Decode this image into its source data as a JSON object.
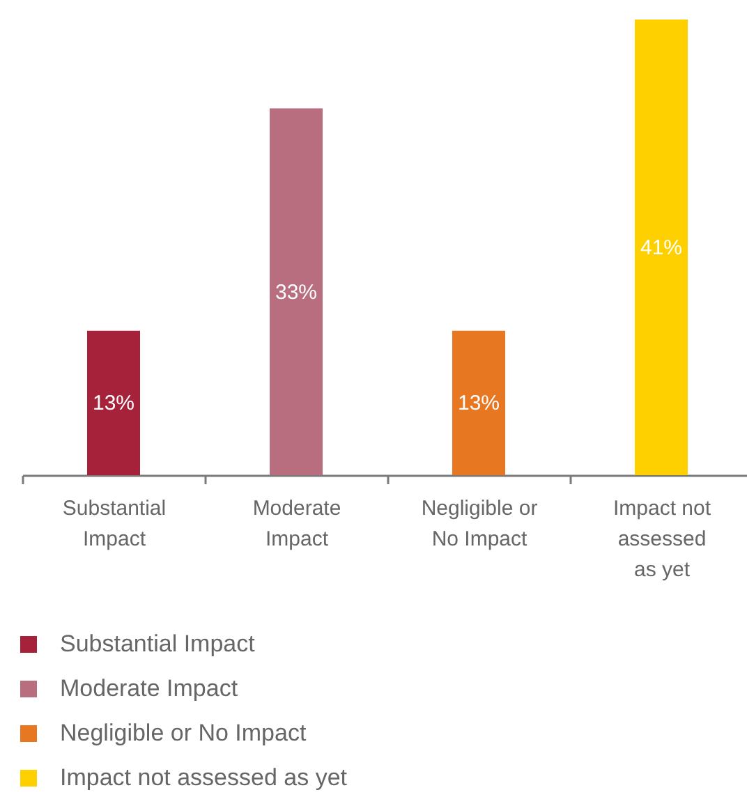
{
  "chart_data": {
    "type": "bar",
    "stacked": true,
    "categories": [
      "Substantial Impact",
      "Moderate Impact",
      "Negligible or No Impact",
      "Impact not assessed as yet"
    ],
    "series": [
      {
        "name": "Substantial Impact",
        "color": "#a6213a",
        "values": [
          13,
          null,
          null,
          null
        ],
        "value_labels": [
          "13%",
          null,
          null,
          null
        ]
      },
      {
        "name": "Moderate Impact",
        "color": "#b86e7e",
        "values": [
          null,
          33,
          null,
          null
        ],
        "value_labels": [
          null,
          "33%",
          null,
          null
        ]
      },
      {
        "name": "Negligible or No Impact",
        "color": "#e87722",
        "values": [
          null,
          null,
          13,
          null
        ],
        "value_labels": [
          null,
          null,
          "13%",
          null
        ]
      },
      {
        "name": "Impact not assessed as yet",
        "color": "#ffd000",
        "values": [
          null,
          null,
          null,
          41
        ],
        "value_labels": [
          null,
          null,
          null,
          "41%"
        ]
      }
    ],
    "legend": "bottom"
  }
}
